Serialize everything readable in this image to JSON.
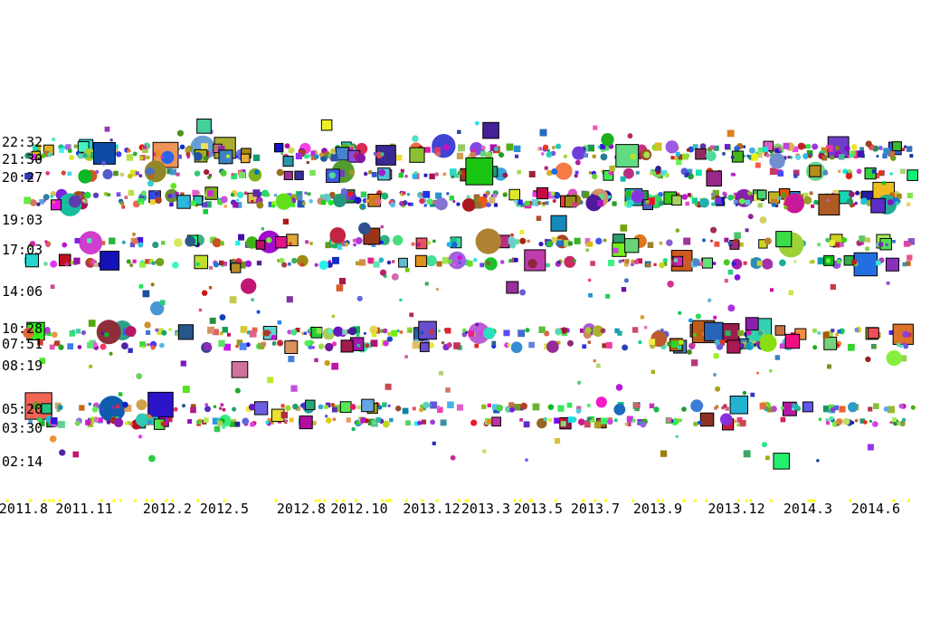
{
  "chart_data": {
    "type": "scatter",
    "title": "",
    "xlabel": "",
    "ylabel": "",
    "x_ticks": [
      "2011.8",
      "2011.11",
      "2012.2",
      "2012.5",
      "2012.8",
      "2012.10",
      "2013.12",
      "2013.3",
      "2013.5",
      "2013.7",
      "2013.9",
      "2013.12",
      "2014.3",
      "2014.6"
    ],
    "y_ticks": [
      "22:32",
      "21:30",
      "20:27",
      "19:03",
      "17:03",
      "14:06",
      "10:28",
      "07:51",
      "08:19",
      "05:20",
      "03:30",
      "02:14"
    ],
    "marker_shapes": [
      "circle",
      "square"
    ],
    "note_band_color": "#ffff00",
    "bands": [
      {
        "time": "22:32",
        "label_index": 0
      },
      {
        "time": "21:30",
        "label_index": 1
      },
      {
        "time": "20:27",
        "label_index": 2
      },
      {
        "time": "19:03",
        "label_index": 3
      },
      {
        "time": "17:03",
        "label_index": 4
      },
      {
        "time": "14:06",
        "label_index": 5
      },
      {
        "time": "10:28",
        "label_index": 6
      },
      {
        "time": "07:51",
        "label_index": 7
      },
      {
        "time": "08:19",
        "label_index": 8
      },
      {
        "time": "05:20",
        "label_index": 9
      },
      {
        "time": "03:30",
        "label_index": 10
      },
      {
        "time": "02:14",
        "label_index": 11
      }
    ]
  }
}
